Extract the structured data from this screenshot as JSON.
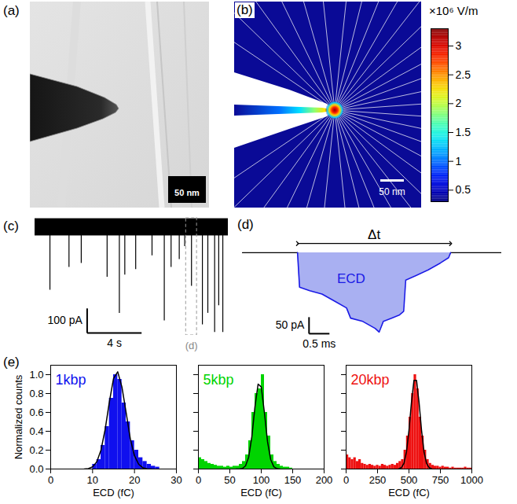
{
  "figure": {
    "a": {
      "panel_label": "(a)",
      "scale_bar": "50 nm"
    },
    "b": {
      "panel_label": "(b)",
      "scale_bar": "50 nm"
    }
  },
  "chart_data": [
    {
      "type": "colorbar",
      "title": "×10⁶ V/m",
      "ylim": [
        0.3,
        3.3
      ],
      "yticks": [
        0.5,
        1,
        1.5,
        2,
        2.5,
        3
      ]
    },
    {
      "type": "trace",
      "panel_label": "(c)",
      "color": "#000000",
      "x": [
        1.1,
        2.5,
        3.4,
        5.3,
        6.2,
        6.6,
        7.4,
        8.6,
        9.5,
        10.0,
        10.6,
        11.0,
        11.5,
        12.3,
        12.7,
        13.2,
        13.5,
        13.8
      ],
      "values": [
        -256,
        -163,
        -147,
        -203,
        -350,
        -194,
        -172,
        -116,
        -381,
        -163,
        -131,
        -78,
        -240,
        -397,
        -350,
        -428,
        -319,
        -428
      ],
      "noise_band": [
        -35,
        35
      ],
      "xlim": [
        0,
        14.2
      ],
      "ylim": [
        -440,
        40
      ],
      "tick_labels": false,
      "y_scale_bar": {
        "value": 100,
        "label": "100 pA"
      },
      "x_scale_bar": {
        "value": 4,
        "label": "4 s"
      },
      "zoom": {
        "x": [
          11.1,
          11.9
        ],
        "label": "(d)"
      }
    },
    {
      "type": "line",
      "panel_label": "(d)",
      "color": "#1a1ae6",
      "x": [
        -1.35,
        0,
        0.05,
        0.3,
        0.6,
        0.9,
        1.2,
        1.3,
        1.6,
        1.9,
        2.0,
        2.1,
        2.3,
        2.5,
        2.6,
        2.65,
        2.9,
        3.2,
        3.5,
        3.7,
        3.75,
        5.0
      ],
      "values": [
        0,
        0,
        -104,
        -115,
        -125,
        -146,
        -167,
        -198,
        -208,
        -229,
        -240,
        -208,
        -198,
        -188,
        -177,
        -83,
        -69,
        -52,
        -31,
        -15,
        0,
        0
      ],
      "xlim": [
        -1.35,
        5.0
      ],
      "ylim": [
        -250,
        45
      ],
      "tick_labels": false,
      "shaded": {
        "label": "ECD",
        "x": [
          0,
          3.75
        ]
      },
      "interval": {
        "label": "Δt",
        "x": [
          0,
          3.75
        ]
      },
      "y_scale_bar": {
        "value": 50,
        "label": "50 pA"
      },
      "x_scale_bar": {
        "value": 0.5,
        "label": "0.5 ms"
      }
    },
    {
      "type": "histogram",
      "panel_label": "(e)",
      "title": "1kbp",
      "color": "#1010ee",
      "xlabel": "ECD (fC)",
      "ylabel": "Normalized counts",
      "bins": [
        10,
        11,
        12,
        13,
        14,
        15,
        16,
        17,
        18,
        19,
        20,
        21,
        22,
        23,
        24,
        25,
        26
      ],
      "values": [
        0.05,
        0.1,
        0.25,
        0.45,
        0.75,
        1.0,
        0.95,
        0.7,
        0.5,
        0.3,
        0.2,
        0.12,
        0.08,
        0.05,
        0.03,
        0.02
      ],
      "fit": {
        "x": [
          8,
          9,
          10,
          11,
          12,
          13,
          14,
          15,
          16,
          17,
          18,
          19,
          20,
          21,
          22,
          23,
          24
        ],
        "values": [
          0.001,
          0.005,
          0.023,
          0.076,
          0.2,
          0.42,
          0.71,
          0.96,
          1.03,
          0.87,
          0.6,
          0.32,
          0.14,
          0.05,
          0.013,
          0.003,
          0
        ]
      },
      "xlim": [
        0,
        30
      ],
      "xticks": [
        0,
        10,
        20,
        30
      ],
      "ylim": [
        0,
        1.1
      ],
      "yticks": [
        {
          "value": 0,
          "label": "0.0"
        },
        0.2,
        0.4,
        0.6,
        0.8,
        {
          "value": 1,
          "label": "1.0"
        }
      ]
    },
    {
      "type": "histogram",
      "title": "5kbp",
      "color": "#00d400",
      "xlabel": "ECD (fC)",
      "bins": [
        0,
        5,
        10,
        15,
        20,
        25,
        30,
        35,
        40,
        45,
        50,
        55,
        60,
        65,
        70,
        75,
        80,
        85,
        90,
        95,
        100,
        105,
        110,
        115,
        120,
        125,
        130,
        135,
        140,
        145,
        150
      ],
      "values": [
        0.12,
        0.1,
        0.08,
        0.06,
        0.05,
        0.04,
        0.03,
        0.03,
        0.02,
        0.03,
        0.02,
        0.03,
        0.03,
        0.05,
        0.08,
        0.15,
        0.3,
        0.6,
        0.8,
        0.85,
        1.0,
        0.6,
        0.35,
        0.15,
        0.08,
        0.05,
        0.03,
        0.02,
        0.02,
        0.01
      ],
      "fit": {
        "x": [
          60,
          65,
          70,
          75,
          80,
          85,
          90,
          95,
          100,
          105,
          110,
          115,
          120,
          125,
          130
        ],
        "values": [
          0,
          0.001,
          0.006,
          0.033,
          0.126,
          0.34,
          0.66,
          0.9,
          0.87,
          0.6,
          0.29,
          0.1,
          0.024,
          0.004,
          0
        ]
      },
      "xlim": [
        0,
        200
      ],
      "xticks": [
        0,
        50,
        100,
        150,
        200
      ],
      "ylim": [
        0,
        1.1
      ],
      "yticks": [
        {
          "value": 0,
          "label": "0.0"
        },
        0.2,
        0.4,
        0.6,
        0.8,
        {
          "value": 1,
          "label": "1.0"
        }
      ],
      "tick_labels": "x"
    },
    {
      "type": "histogram",
      "title": "20kbp",
      "color": "#ee1111",
      "xlabel": "ECD (fC)",
      "bins": [
        0,
        20,
        40,
        60,
        80,
        100,
        120,
        140,
        160,
        180,
        200,
        220,
        240,
        260,
        280,
        300,
        320,
        340,
        360,
        380,
        400,
        420,
        440,
        460,
        480,
        500,
        520,
        540,
        560,
        580,
        600,
        620,
        640,
        660,
        680,
        700,
        720,
        740,
        760,
        780,
        800,
        820,
        840,
        860,
        880,
        900,
        920,
        940,
        960,
        980,
        1000
      ],
      "values": [
        0.15,
        0.12,
        0.1,
        0.12,
        0.08,
        0.1,
        0.06,
        0.05,
        0.04,
        0.05,
        0.04,
        0.03,
        0.04,
        0.03,
        0.05,
        0.04,
        0.03,
        0.04,
        0.05,
        0.04,
        0.06,
        0.08,
        0.1,
        0.2,
        0.35,
        0.55,
        0.8,
        1.0,
        0.85,
        0.55,
        0.35,
        0.2,
        0.1,
        0.06,
        0.04,
        0.03,
        0.03,
        0.02,
        0.03,
        0.02,
        0.02,
        0.01,
        0.02,
        0.01,
        0.01,
        0.01,
        0.01,
        0.02,
        0.01,
        0.01
      ],
      "fit": {
        "x": [
          420,
          440,
          460,
          480,
          500,
          520,
          540,
          560,
          580,
          600,
          620,
          640,
          660,
          680
        ],
        "values": [
          0.003,
          0.015,
          0.059,
          0.18,
          0.41,
          0.71,
          0.94,
          0.94,
          0.71,
          0.41,
          0.18,
          0.059,
          0.015,
          0.003
        ]
      },
      "xlim": [
        0,
        1000
      ],
      "xticks": [
        0,
        250,
        500,
        750,
        1000
      ],
      "ylim": [
        0,
        1.1
      ],
      "yticks": [
        {
          "value": 0,
          "label": "0.0"
        },
        0.2,
        0.4,
        0.6,
        0.8,
        {
          "value": 1,
          "label": "1.0"
        }
      ],
      "tick_labels": "x"
    }
  ]
}
